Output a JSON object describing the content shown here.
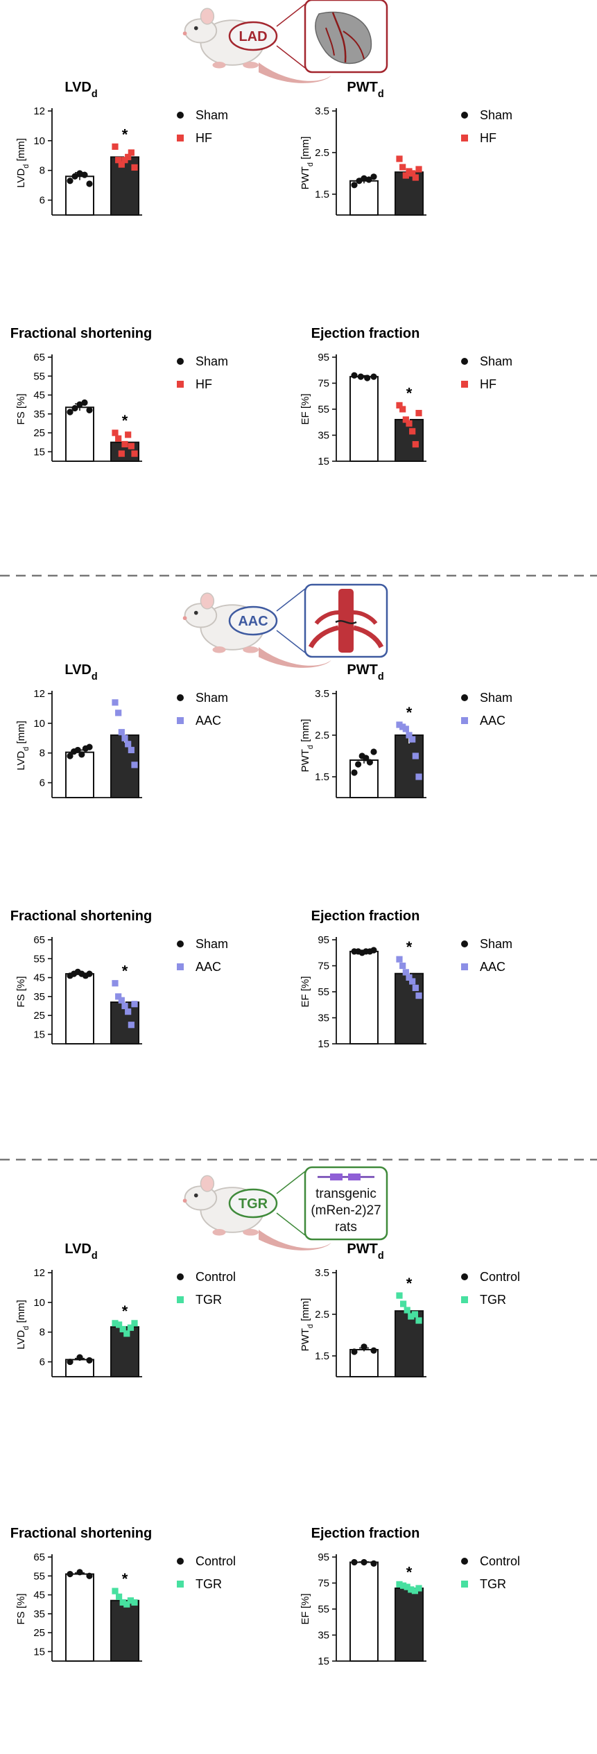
{
  "sections": [
    {
      "model_label": "LAD",
      "model_color": "#a3262e",
      "panel_text": [],
      "legend": {
        "control": "Sham",
        "treated": "HF"
      },
      "treated_color": "#e8413c",
      "charts": [
        {
          "type": "bar",
          "title": "LVD",
          "title_sub": "d",
          "ylabel": "LVD",
          "ylabel_sub": "d",
          "ylabel_unit": " [mm]",
          "ylim": [
            5,
            12
          ],
          "ticks": [
            6,
            8,
            10,
            12
          ],
          "bars": [
            7.6,
            8.9
          ],
          "errors": [
            0.25,
            0.35
          ],
          "control_points": [
            7.3,
            7.6,
            7.8,
            7.7,
            7.1
          ],
          "treated_points": [
            9.6,
            8.7,
            8.4,
            8.7,
            8.9,
            9.2,
            8.2
          ],
          "significance": "*"
        },
        {
          "type": "bar",
          "title": "PWT",
          "title_sub": "d",
          "ylabel": "PWT",
          "ylabel_sub": "d",
          "ylabel_unit": " [mm]",
          "ylim": [
            1,
            3.5
          ],
          "ticks": [
            1.5,
            2.5,
            3.5
          ],
          "bars": [
            1.82,
            2.03
          ],
          "errors": [
            0.06,
            0.08
          ],
          "control_points": [
            1.72,
            1.82,
            1.88,
            1.85,
            1.92
          ],
          "treated_points": [
            2.35,
            2.15,
            1.95,
            2.05,
            2.0,
            1.9,
            2.1
          ],
          "significance": ""
        },
        {
          "type": "bar",
          "title": "Fractional shortening",
          "title_sub": "",
          "ylabel": "FS [%]",
          "ylabel_sub": "",
          "ylabel_unit": "",
          "ylim": [
            10,
            65
          ],
          "ticks": [
            15,
            25,
            35,
            45,
            55,
            65
          ],
          "bars": [
            38.5,
            20
          ],
          "errors": [
            1.8,
            2.0
          ],
          "control_points": [
            36,
            38,
            40,
            41,
            37
          ],
          "treated_points": [
            25,
            22,
            14,
            19,
            24,
            18,
            14
          ],
          "significance": "*"
        },
        {
          "type": "bar",
          "title": "Ejection fraction",
          "title_sub": "",
          "ylabel": "EF [%]",
          "ylabel_sub": "",
          "ylabel_unit": "",
          "ylim": [
            15,
            95
          ],
          "ticks": [
            15,
            35,
            55,
            75,
            95
          ],
          "bars": [
            80,
            47
          ],
          "errors": [
            0.8,
            4.5
          ],
          "control_points": [
            81,
            80,
            79,
            80
          ],
          "treated_points": [
            58,
            55,
            47,
            44,
            38,
            28,
            52
          ],
          "significance": "*"
        }
      ]
    },
    {
      "model_label": "AAC",
      "model_color": "#3e5aa0",
      "panel_text": [],
      "legend": {
        "control": "Sham",
        "treated": "AAC"
      },
      "treated_color": "#8c8fe6",
      "charts": [
        {
          "type": "bar",
          "title": "LVD",
          "title_sub": "d",
          "ylabel": "LVD",
          "ylabel_sub": "d",
          "ylabel_unit": " [mm]",
          "ylim": [
            5,
            12
          ],
          "ticks": [
            6,
            8,
            10,
            12
          ],
          "bars": [
            8.05,
            9.2
          ],
          "errors": [
            0.15,
            0.5
          ],
          "control_points": [
            7.8,
            8.1,
            8.2,
            7.9,
            8.3,
            8.4
          ],
          "treated_points": [
            11.4,
            10.7,
            9.4,
            9.0,
            8.6,
            8.2,
            7.2
          ],
          "significance": ""
        },
        {
          "type": "bar",
          "title": "PWT",
          "title_sub": "d",
          "ylabel": "PWT",
          "ylabel_sub": "d",
          "ylabel_unit": " [mm]",
          "ylim": [
            1,
            3.5
          ],
          "ticks": [
            1.5,
            2.5,
            3.5
          ],
          "bars": [
            1.9,
            2.5
          ],
          "errors": [
            0.08,
            0.2
          ],
          "control_points": [
            1.6,
            1.8,
            2.0,
            1.95,
            1.85,
            2.1
          ],
          "treated_points": [
            2.75,
            2.7,
            2.65,
            2.5,
            2.4,
            2.0,
            1.5
          ],
          "significance": "*"
        },
        {
          "type": "bar",
          "title": "Fractional shortening",
          "title_sub": "",
          "ylabel": "FS [%]",
          "ylabel_sub": "",
          "ylabel_unit": "",
          "ylim": [
            10,
            65
          ],
          "ticks": [
            15,
            25,
            35,
            45,
            55,
            65
          ],
          "bars": [
            47,
            32
          ],
          "errors": [
            0.5,
            2.8
          ],
          "control_points": [
            46,
            47,
            48,
            47,
            46,
            47
          ],
          "treated_points": [
            42,
            35,
            33,
            30,
            27,
            20,
            31
          ],
          "significance": "*"
        },
        {
          "type": "bar",
          "title": "Ejection fraction",
          "title_sub": "",
          "ylabel": "EF [%]",
          "ylabel_sub": "",
          "ylabel_unit": "",
          "ylim": [
            15,
            95
          ],
          "ticks": [
            15,
            35,
            55,
            75,
            95
          ],
          "bars": [
            86,
            69
          ],
          "errors": [
            0.4,
            3.0
          ],
          "control_points": [
            86,
            86,
            85,
            86,
            86,
            87
          ],
          "treated_points": [
            80,
            75,
            70,
            66,
            63,
            58,
            52
          ],
          "significance": "*"
        }
      ]
    },
    {
      "model_label": "TGR",
      "model_color": "#3f8a3a",
      "panel_text": [
        "transgenic",
        "(mRen-2)27",
        "rats"
      ],
      "legend": {
        "control": "Control",
        "treated": "TGR"
      },
      "treated_color": "#47e0a0",
      "charts": [
        {
          "type": "bar",
          "title": "LVD",
          "title_sub": "d",
          "ylabel": "LVD",
          "ylabel_sub": "d",
          "ylabel_unit": " [mm]",
          "ylim": [
            5,
            12
          ],
          "ticks": [
            6,
            8,
            10,
            12
          ],
          "bars": [
            6.15,
            8.35
          ],
          "errors": [
            0.08,
            0.15
          ],
          "control_points": [
            6.0,
            6.3,
            6.1
          ],
          "treated_points": [
            8.6,
            8.5,
            8.2,
            7.9,
            8.3,
            8.6
          ],
          "significance": "*"
        },
        {
          "type": "bar",
          "title": "PWT",
          "title_sub": "d",
          "ylabel": "PWT",
          "ylabel_sub": "d",
          "ylabel_unit": " [mm]",
          "ylim": [
            1,
            3.5
          ],
          "ticks": [
            1.5,
            2.5,
            3.5
          ],
          "bars": [
            1.65,
            2.58
          ],
          "errors": [
            0.04,
            0.1
          ],
          "control_points": [
            1.6,
            1.72,
            1.63
          ],
          "treated_points": [
            2.95,
            2.75,
            2.6,
            2.45,
            2.5,
            2.35
          ],
          "significance": "*"
        },
        {
          "type": "bar",
          "title": "Fractional shortening",
          "title_sub": "",
          "ylabel": "FS [%]",
          "ylabel_sub": "",
          "ylabel_unit": "",
          "ylim": [
            10,
            65
          ],
          "ticks": [
            15,
            25,
            35,
            45,
            55,
            65
          ],
          "bars": [
            56,
            42
          ],
          "errors": [
            0.6,
            1.2
          ],
          "control_points": [
            56,
            57,
            55
          ],
          "treated_points": [
            47,
            44,
            41,
            40,
            42,
            41
          ],
          "significance": "*"
        },
        {
          "type": "bar",
          "title": "Ejection fraction",
          "title_sub": "",
          "ylabel": "EF [%]",
          "ylabel_sub": "",
          "ylabel_unit": "",
          "ylim": [
            15,
            95
          ],
          "ticks": [
            15,
            35,
            55,
            75,
            95
          ],
          "bars": [
            91,
            71
          ],
          "errors": [
            0.3,
            1.5
          ],
          "control_points": [
            91,
            91,
            90
          ],
          "treated_points": [
            74,
            73,
            72,
            70,
            69,
            71
          ],
          "significance": "*"
        }
      ]
    }
  ]
}
